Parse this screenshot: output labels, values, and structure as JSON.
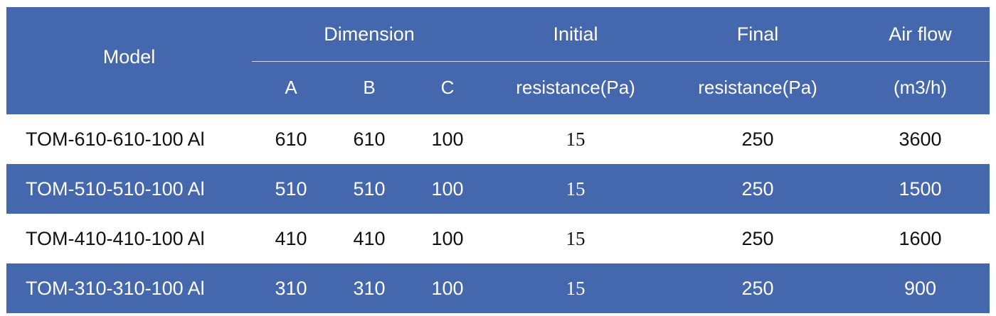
{
  "header": {
    "model": "Model",
    "dimension": "Dimension",
    "dim_a": "A",
    "dim_b": "B",
    "dim_c": "C",
    "initial_line1": "Initial",
    "initial_line2": "resistance(Pa)",
    "final_line1": "Final",
    "final_line2": "resistance(Pa)",
    "airflow_line1": "Air flow",
    "airflow_line2": "(m3/h)"
  },
  "rows": [
    {
      "model": "TOM-610-610-100 Al",
      "a": "610",
      "b": "610",
      "c": "100",
      "initial": "15",
      "final": "250",
      "airflow": "3600"
    },
    {
      "model": "TOM-510-510-100 Al",
      "a": "510",
      "b": "510",
      "c": "100",
      "initial": "15",
      "final": "250",
      "airflow": "1500"
    },
    {
      "model": "TOM-410-410-100 Al",
      "a": "410",
      "b": "410",
      "c": "100",
      "initial": "15",
      "final": "250",
      "airflow": "1600"
    },
    {
      "model": "TOM-310-310-100 Al",
      "a": "310",
      "b": "310",
      "c": "100",
      "initial": "15",
      "final": "250",
      "airflow": "900"
    }
  ],
  "colors": {
    "header_bg": "#4467ad",
    "alt_row_bg": "#4467ad",
    "text_dark": "#111111",
    "text_light": "#ffffff"
  }
}
